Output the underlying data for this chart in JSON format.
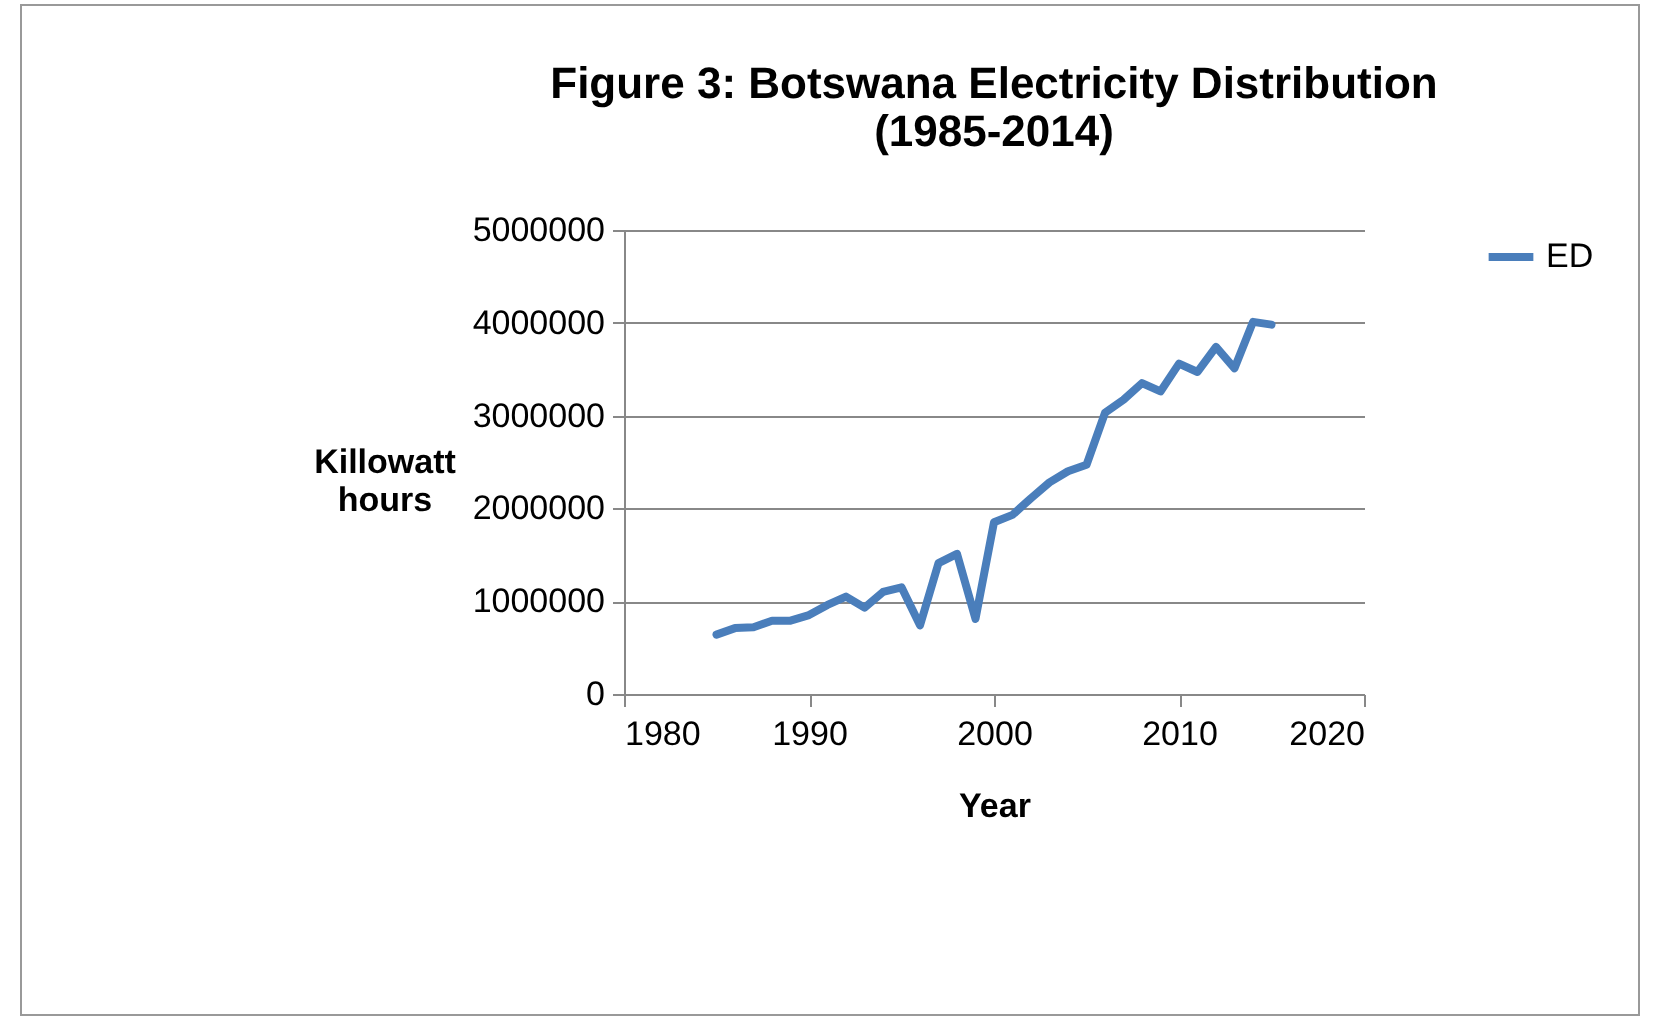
{
  "chart_data": {
    "type": "line",
    "title": "Figure 3: Botswana Electricity Distribution (1985-2014)",
    "xlabel": "Year",
    "ylabel": "Killowatt hours",
    "x": [
      1985,
      1986,
      1987,
      1988,
      1989,
      1990,
      1991,
      1992,
      1993,
      1994,
      1995,
      1996,
      1997,
      1998,
      1999,
      2000,
      2001,
      2002,
      2003,
      2004,
      2005,
      2006,
      2007,
      2008,
      2009,
      2010,
      2011,
      2012,
      2013,
      2014,
      2015
    ],
    "series": [
      {
        "name": "ED",
        "color": "#4a7ebb",
        "values": [
          640000,
          710000,
          720000,
          790000,
          790000,
          850000,
          960000,
          1050000,
          930000,
          1100000,
          1150000,
          740000,
          1410000,
          1510000,
          810000,
          1850000,
          1930000,
          2110000,
          2280000,
          2400000,
          2470000,
          3030000,
          3170000,
          3350000,
          3260000,
          3560000,
          3470000,
          3740000,
          3510000,
          4010000,
          3980000
        ]
      }
    ],
    "xlim": [
      1980,
      2020
    ],
    "xticks": [
      1980,
      1990,
      2000,
      2010,
      2020
    ],
    "ylim": [
      0,
      5000000
    ],
    "yticks": [
      0,
      1000000,
      2000000,
      3000000,
      4000000,
      5000000
    ],
    "grid": "y",
    "legend": "right",
    "marker": "none",
    "line_style": "solid"
  }
}
